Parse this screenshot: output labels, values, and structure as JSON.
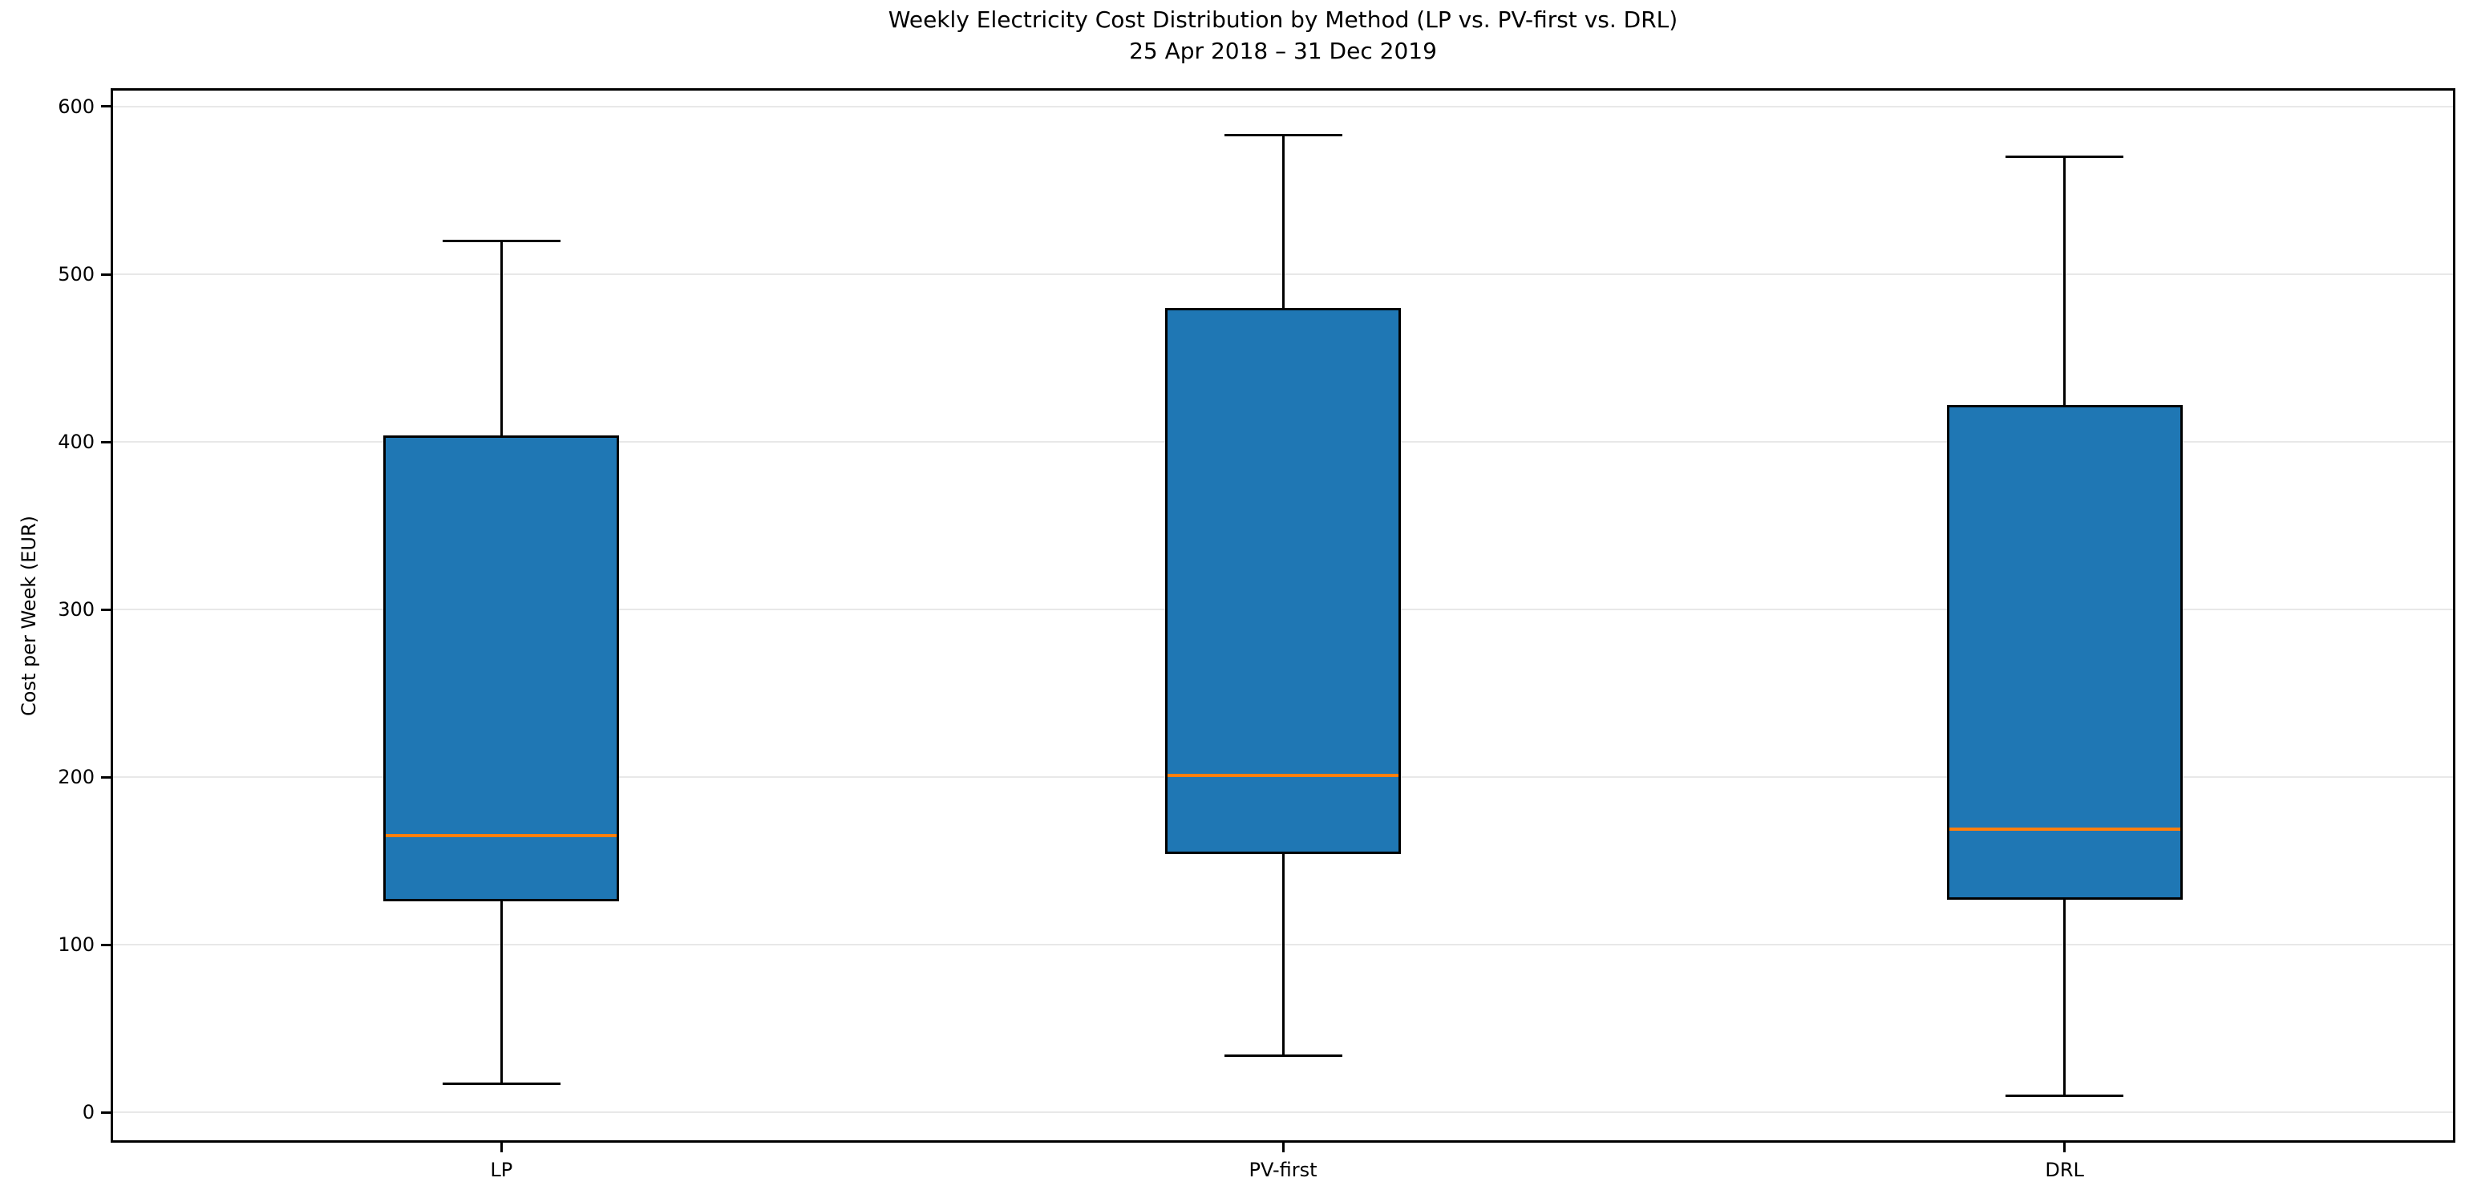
{
  "chart_data": {
    "type": "box",
    "title": "Weekly Electricity Cost Distribution by Method (LP vs. PV-first vs. DRL)",
    "subtitle": "25 Apr 2018 – 31 Dec 2019",
    "xlabel": "",
    "ylabel": "Cost per Week (EUR)",
    "categories": [
      "LP",
      "PV-first",
      "DRL"
    ],
    "series": [
      {
        "name": "LP",
        "whisker_low": 17,
        "q1": 126,
        "median": 165,
        "q3": 404,
        "whisker_high": 520
      },
      {
        "name": "PV-first",
        "whisker_low": 34,
        "q1": 154,
        "median": 201,
        "q3": 480,
        "whisker_high": 583
      },
      {
        "name": "DRL",
        "whisker_low": 10,
        "q1": 127,
        "median": 169,
        "q3": 422,
        "whisker_high": 570
      }
    ],
    "ylim": [
      -18,
      611
    ],
    "yticks": [
      0,
      100,
      200,
      300,
      400,
      500,
      600
    ],
    "grid": "horizontal",
    "legend_position": "none",
    "colors": {
      "box_fill": "#1f77b4",
      "box_edge": "#000000",
      "median": "#ff7f0e",
      "whisker": "#000000",
      "grid": "#e8e8e8",
      "spine": "#000000",
      "text": "#000000",
      "background": "#ffffff"
    }
  }
}
